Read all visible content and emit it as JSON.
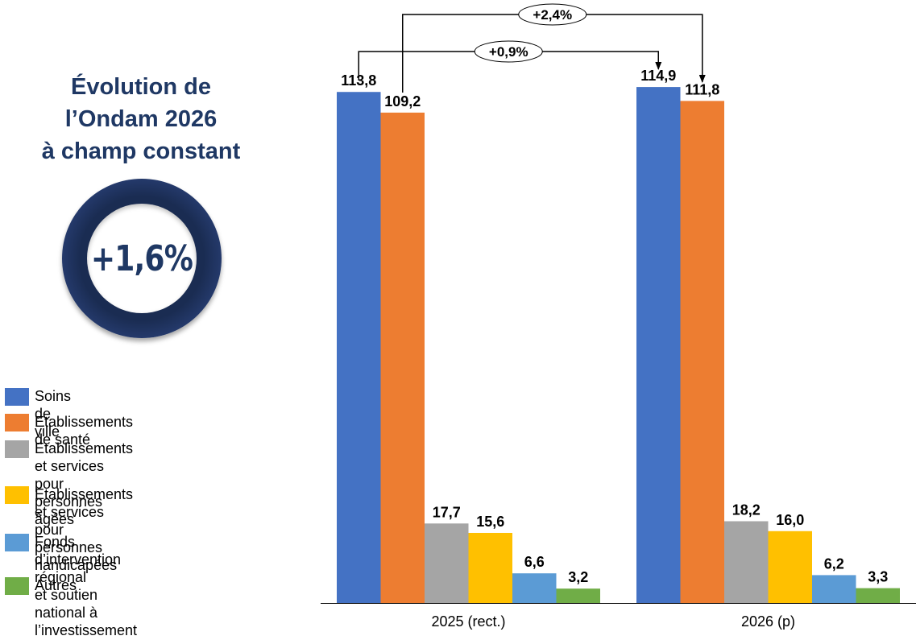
{
  "headline": {
    "title_lines": [
      "Évolution de",
      "l’Ondam 2026",
      "à champ constant"
    ],
    "value": "+1,6%"
  },
  "chart_data": {
    "type": "bar",
    "categories": [
      "2025 (rect.)",
      "2026 (p)"
    ],
    "series": [
      {
        "name": "Soins de ville",
        "color": "#4472c4",
        "values": [
          113.8,
          114.9
        ],
        "labels": [
          "113,8",
          "114,9"
        ]
      },
      {
        "name": "Etablissements de santé",
        "color": "#ed7d31",
        "values": [
          109.2,
          111.8
        ],
        "labels": [
          "109,2",
          "111,8"
        ]
      },
      {
        "name": "Etablissements et services\npour personnes âgées",
        "color": "#a5a5a5",
        "values": [
          17.7,
          18.2
        ],
        "labels": [
          "17,7",
          "18,2"
        ]
      },
      {
        "name": "Etablissements et services\npour personnes handicapées",
        "color": "#ffc000",
        "values": [
          15.6,
          16.0
        ],
        "labels": [
          "15,6",
          "16,0"
        ]
      },
      {
        "name": "Fonds d’intervention régional\net soutien national à l’investissement",
        "color": "#5b9bd5",
        "values": [
          6.6,
          6.2
        ],
        "labels": [
          "6,6",
          "6,2"
        ]
      },
      {
        "name": "Autres",
        "color": "#70ad47",
        "values": [
          3.2,
          3.3
        ],
        "labels": [
          "3,2",
          "3,3"
        ]
      }
    ],
    "annotations": [
      {
        "label": "+0,9%",
        "from_series": 0,
        "to_series": 0
      },
      {
        "label": "+2,4%",
        "from_series": 1,
        "to_series": 1
      }
    ],
    "ylim": [
      0,
      120
    ],
    "grid": false,
    "legend_position": "left"
  }
}
